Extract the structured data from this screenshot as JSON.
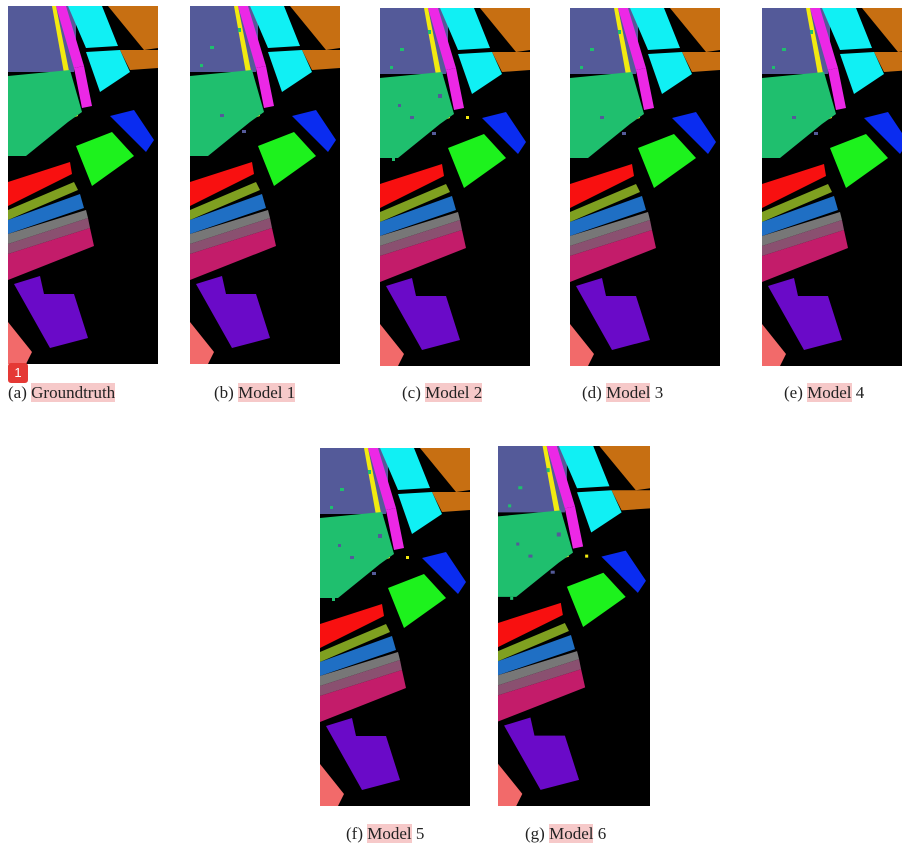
{
  "figure": {
    "panels": [
      {
        "id": "a",
        "prefix": "(a)",
        "name": "Groundtruth",
        "highlight": "full",
        "noise": 0
      },
      {
        "id": "b",
        "prefix": "(b)",
        "name": "Model 1",
        "highlight": "full",
        "noise": 1
      },
      {
        "id": "c",
        "prefix": "(c)",
        "name": "Model 2",
        "highlight": "full",
        "noise": 2
      },
      {
        "id": "d",
        "prefix": "(d)",
        "name_hl": "Model",
        "name_rest": " 3",
        "highlight": "word",
        "noise": 1
      },
      {
        "id": "e",
        "prefix": "(e)",
        "name_hl": "Model",
        "name_rest": " 4",
        "highlight": "word",
        "noise": 1
      },
      {
        "id": "f",
        "prefix": "(f)",
        "name_hl": "Model",
        "name_rest": " 5",
        "highlight": "word",
        "noise": 2
      },
      {
        "id": "g",
        "prefix": "(g)",
        "name_hl": "Model",
        "name_rest": " 6",
        "highlight": "word",
        "noise": 2
      }
    ],
    "badge": "1"
  },
  "colors": {
    "background": "#000000",
    "slate": "#545a99",
    "green": "#1fbf6e",
    "magenta": "#ec28e6",
    "cyan": "#10f0f4",
    "yellow": "#f2ea10",
    "brown": "#c76f12",
    "blue": "#0a2cf0",
    "lime": "#1df21d",
    "red": "#f81010",
    "olive": "#7fa020",
    "steelblue": "#1f6fc4",
    "grayline": "#777777",
    "mauve": "#8a5070",
    "crimson": "#c31c6a",
    "violet": "#6a0ac8",
    "salmon": "#f26a6a"
  }
}
